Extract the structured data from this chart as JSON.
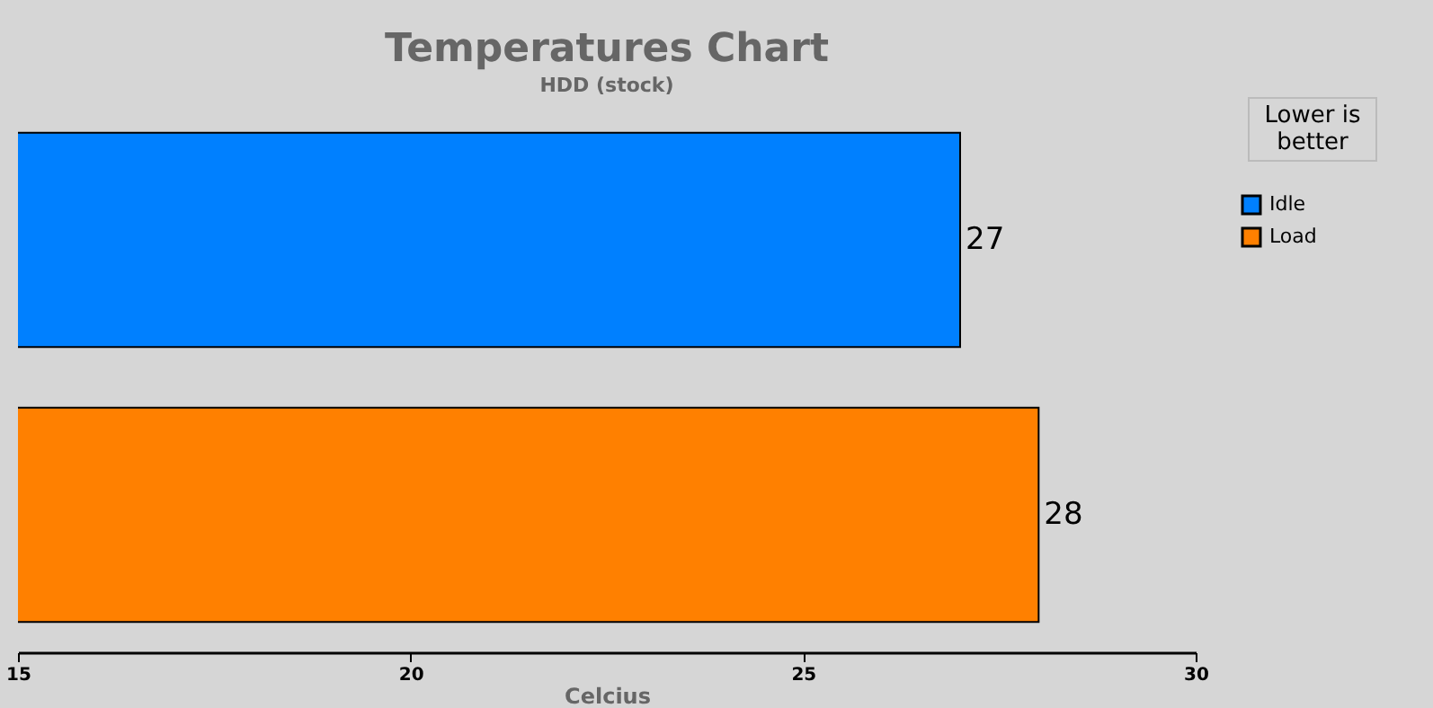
{
  "chart_data": {
    "type": "bar",
    "orientation": "horizontal",
    "title": "Temperatures Chart",
    "subtitle": "HDD (stock)",
    "xlabel": "Celcius",
    "categories": [
      null,
      null
    ],
    "series": [
      {
        "name": "Idle",
        "color": "#0080ff",
        "values": [
          27,
          null
        ]
      },
      {
        "name": "Load",
        "color": "#ff8000",
        "values": [
          null,
          28
        ]
      }
    ],
    "stacked": true,
    "xlim": [
      15,
      30
    ],
    "xticks": [
      15,
      20,
      25,
      30
    ],
    "data_labels": true,
    "legend": "right",
    "tick_labels": "x",
    "annotations": [
      "Lower is better"
    ]
  }
}
